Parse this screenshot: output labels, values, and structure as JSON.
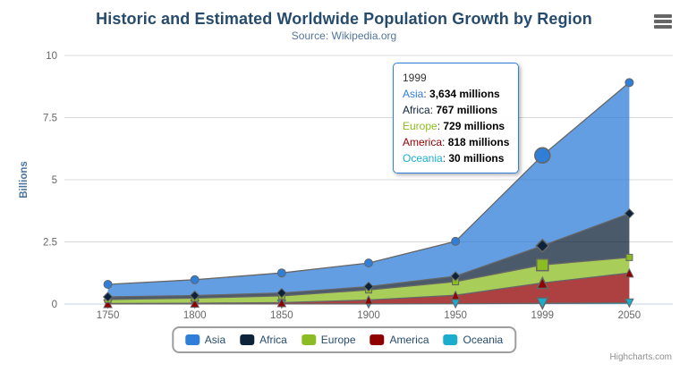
{
  "header": {
    "title": "Historic and Estimated Worldwide Population Growth by Region",
    "subtitle": "Source: Wikipedia.org"
  },
  "icons": {
    "export_menu": "hamburger-menu-icon"
  },
  "credits": {
    "label": "Highcharts.com"
  },
  "chart_data": {
    "type": "area",
    "stacking": "normal",
    "title": "Historic and Estimated Worldwide Population Growth by Region",
    "subtitle": "Source: Wikipedia.org",
    "categories": [
      "1750",
      "1800",
      "1850",
      "1900",
      "1950",
      "1999",
      "2050"
    ],
    "series": [
      {
        "name": "Asia",
        "color": "#2f7ed8",
        "marker": "circle",
        "values": [
          502,
          635,
          809,
          947,
          1402,
          3634,
          5268
        ]
      },
      {
        "name": "Africa",
        "color": "#0d233a",
        "marker": "diamond",
        "values": [
          106,
          107,
          111,
          133,
          221,
          767,
          1766
        ]
      },
      {
        "name": "Europe",
        "color": "#8bbc21",
        "marker": "square",
        "values": [
          163,
          203,
          276,
          408,
          547,
          729,
          628
        ]
      },
      {
        "name": "America",
        "color": "#910000",
        "marker": "triangle",
        "values": [
          18,
          31,
          54,
          156,
          339,
          818,
          1201
        ]
      },
      {
        "name": "Oceania",
        "color": "#1aadce",
        "marker": "triangle-down",
        "values": [
          2,
          2,
          2,
          6,
          13,
          30,
          46
        ]
      }
    ],
    "stack_order_bottom_to_top": [
      "Oceania",
      "America",
      "Europe",
      "Africa",
      "Asia"
    ],
    "values_unit": "millions",
    "xlabel": "",
    "ylabel": "Billions",
    "yticks": [
      0,
      2.5,
      5,
      7.5,
      10
    ],
    "ylim": [
      0,
      10
    ],
    "axis_unit": "billions",
    "values_per_axis_unit": 1000,
    "grid": true,
    "legend_position": "bottom",
    "line_color": "#666666",
    "fill_opacity": 0.75,
    "gridline_color": "#d8d8d8",
    "axis_line_color": "#c0d0e0"
  },
  "hover": {
    "category": "1999",
    "category_index": 5
  },
  "tooltip": {
    "header": "1999",
    "border_color": "#2f7ed8",
    "rows": [
      {
        "label": "Asia",
        "value": "3,634 millions",
        "color": "#2f7ed8"
      },
      {
        "label": "Africa",
        "value": "767 millions",
        "color": "#0d233a"
      },
      {
        "label": "Europe",
        "value": "729 millions",
        "color": "#8bbc21"
      },
      {
        "label": "America",
        "value": "818 millions",
        "color": "#910000"
      },
      {
        "label": "Oceania",
        "value": "30 millions",
        "color": "#1aadce"
      }
    ]
  }
}
